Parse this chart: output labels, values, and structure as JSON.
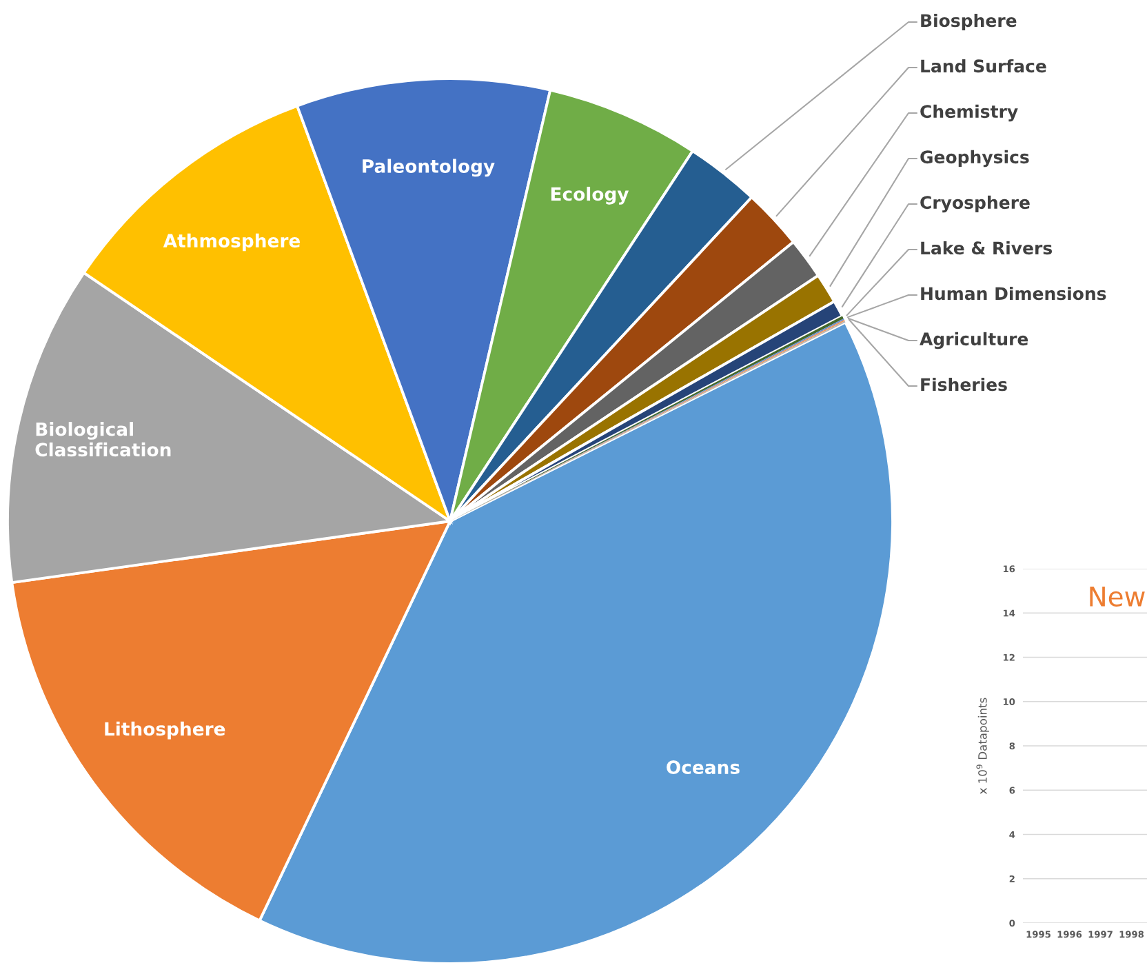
{
  "chart_data": [
    {
      "type": "pie",
      "categories": [
        "Oceans",
        "Lithosphere",
        "Biological Classification",
        "Athmosphere",
        "Paleontology",
        "Ecology",
        "Biosphere",
        "Land Surface",
        "Chemistry",
        "Geophysics",
        "Cryosphere",
        "Lake & Rivers",
        "Human Dimensions",
        "Agriculture",
        "Fisheries"
      ],
      "values": [
        39.5,
        15.7,
        11.7,
        9.9,
        9.25,
        5.6,
        2.7,
        2.2,
        1.5,
        1.1,
        0.6,
        0.1,
        0.05,
        0.05,
        0.05
      ],
      "colors": [
        "#5b9bd5",
        "#ed7d31",
        "#a5a5a5",
        "#ffc000",
        "#4472c4",
        "#70ad47",
        "#255e91",
        "#9e480e",
        "#636363",
        "#997300",
        "#264478",
        "#43682b",
        "#698ed0",
        "#f1975a",
        "#b7b7b7"
      ]
    },
    {
      "type": "bar",
      "title": "New",
      "ylabel": "x 10$^{9}$ Datapoints",
      "categories": [
        "1995",
        "1996",
        "1997",
        "1998"
      ],
      "values": [
        null,
        null,
        null,
        null
      ],
      "ylim": [
        0,
        16
      ],
      "yticks": [
        0,
        2,
        4,
        6,
        8,
        10,
        12,
        14,
        16
      ],
      "grid": "y"
    }
  ]
}
